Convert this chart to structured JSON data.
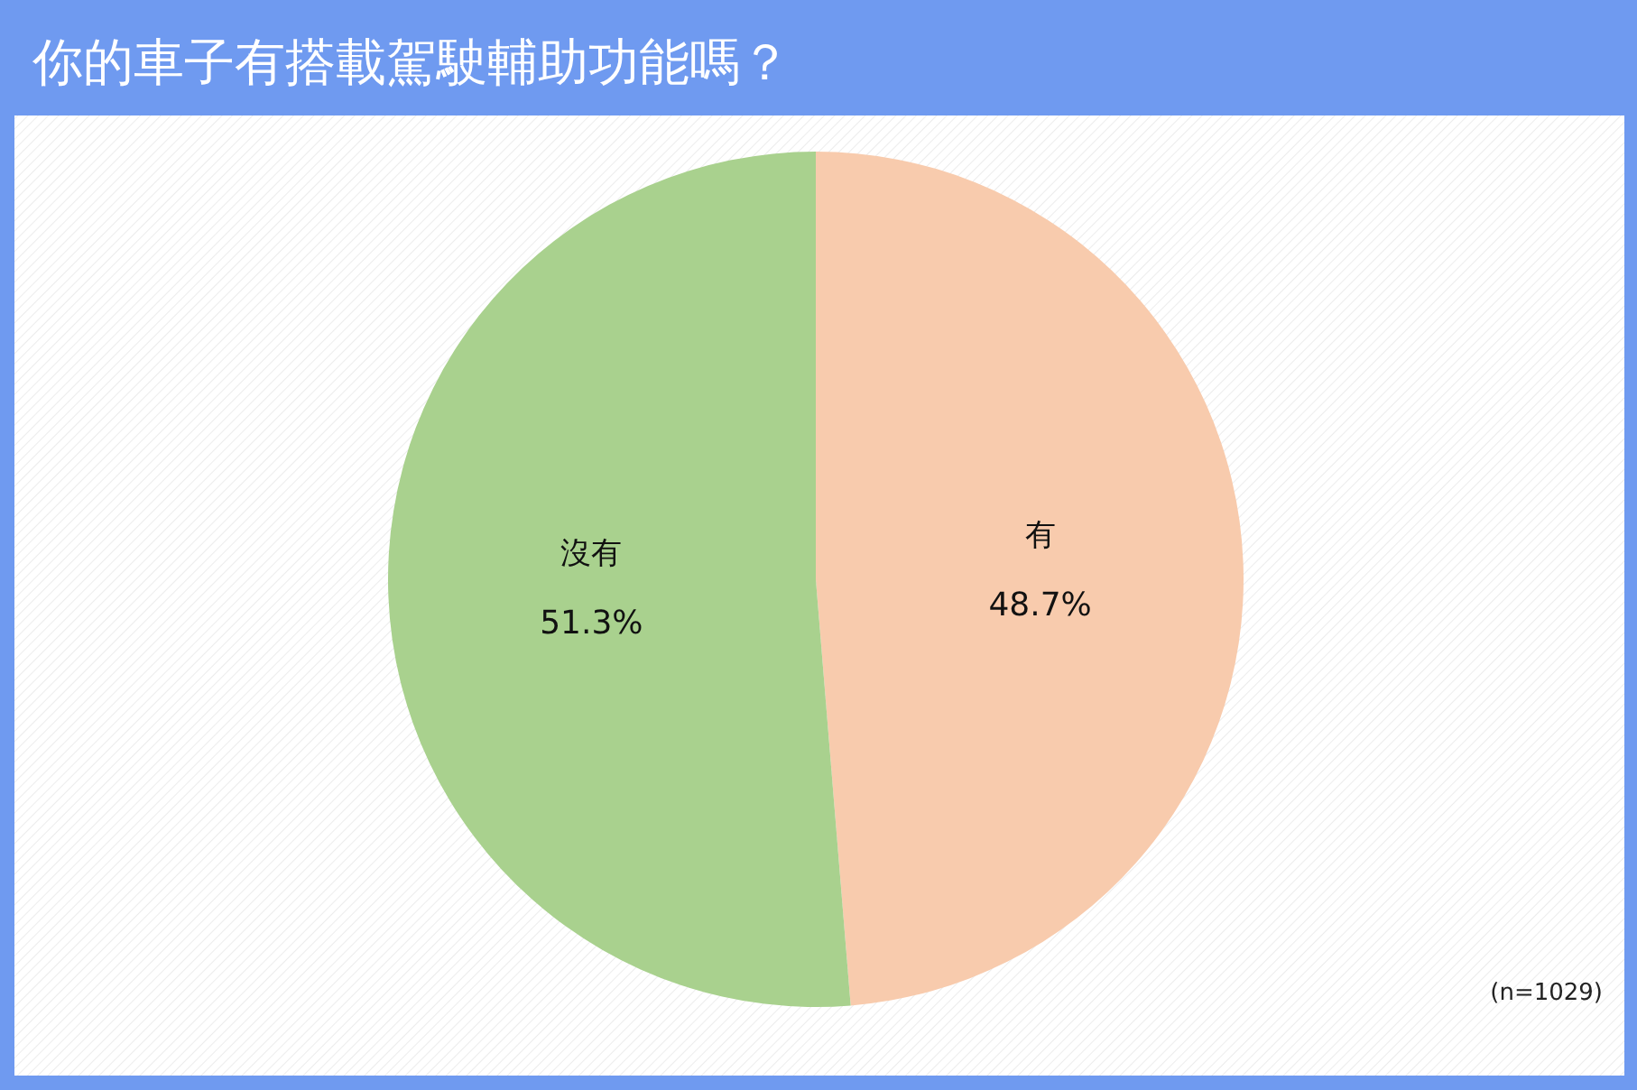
{
  "chart_data": {
    "type": "pie",
    "title": "你的車子有搭載駕駛輔助功能嗎？",
    "categories": [
      "有",
      "沒有"
    ],
    "values": [
      48.7,
      51.3
    ],
    "colors": [
      "#f8cbad",
      "#a9d18e"
    ],
    "value_labels": [
      "48.7%",
      "51.3%"
    ],
    "legend": false,
    "annotations": [
      "(n=1029)"
    ]
  }
}
